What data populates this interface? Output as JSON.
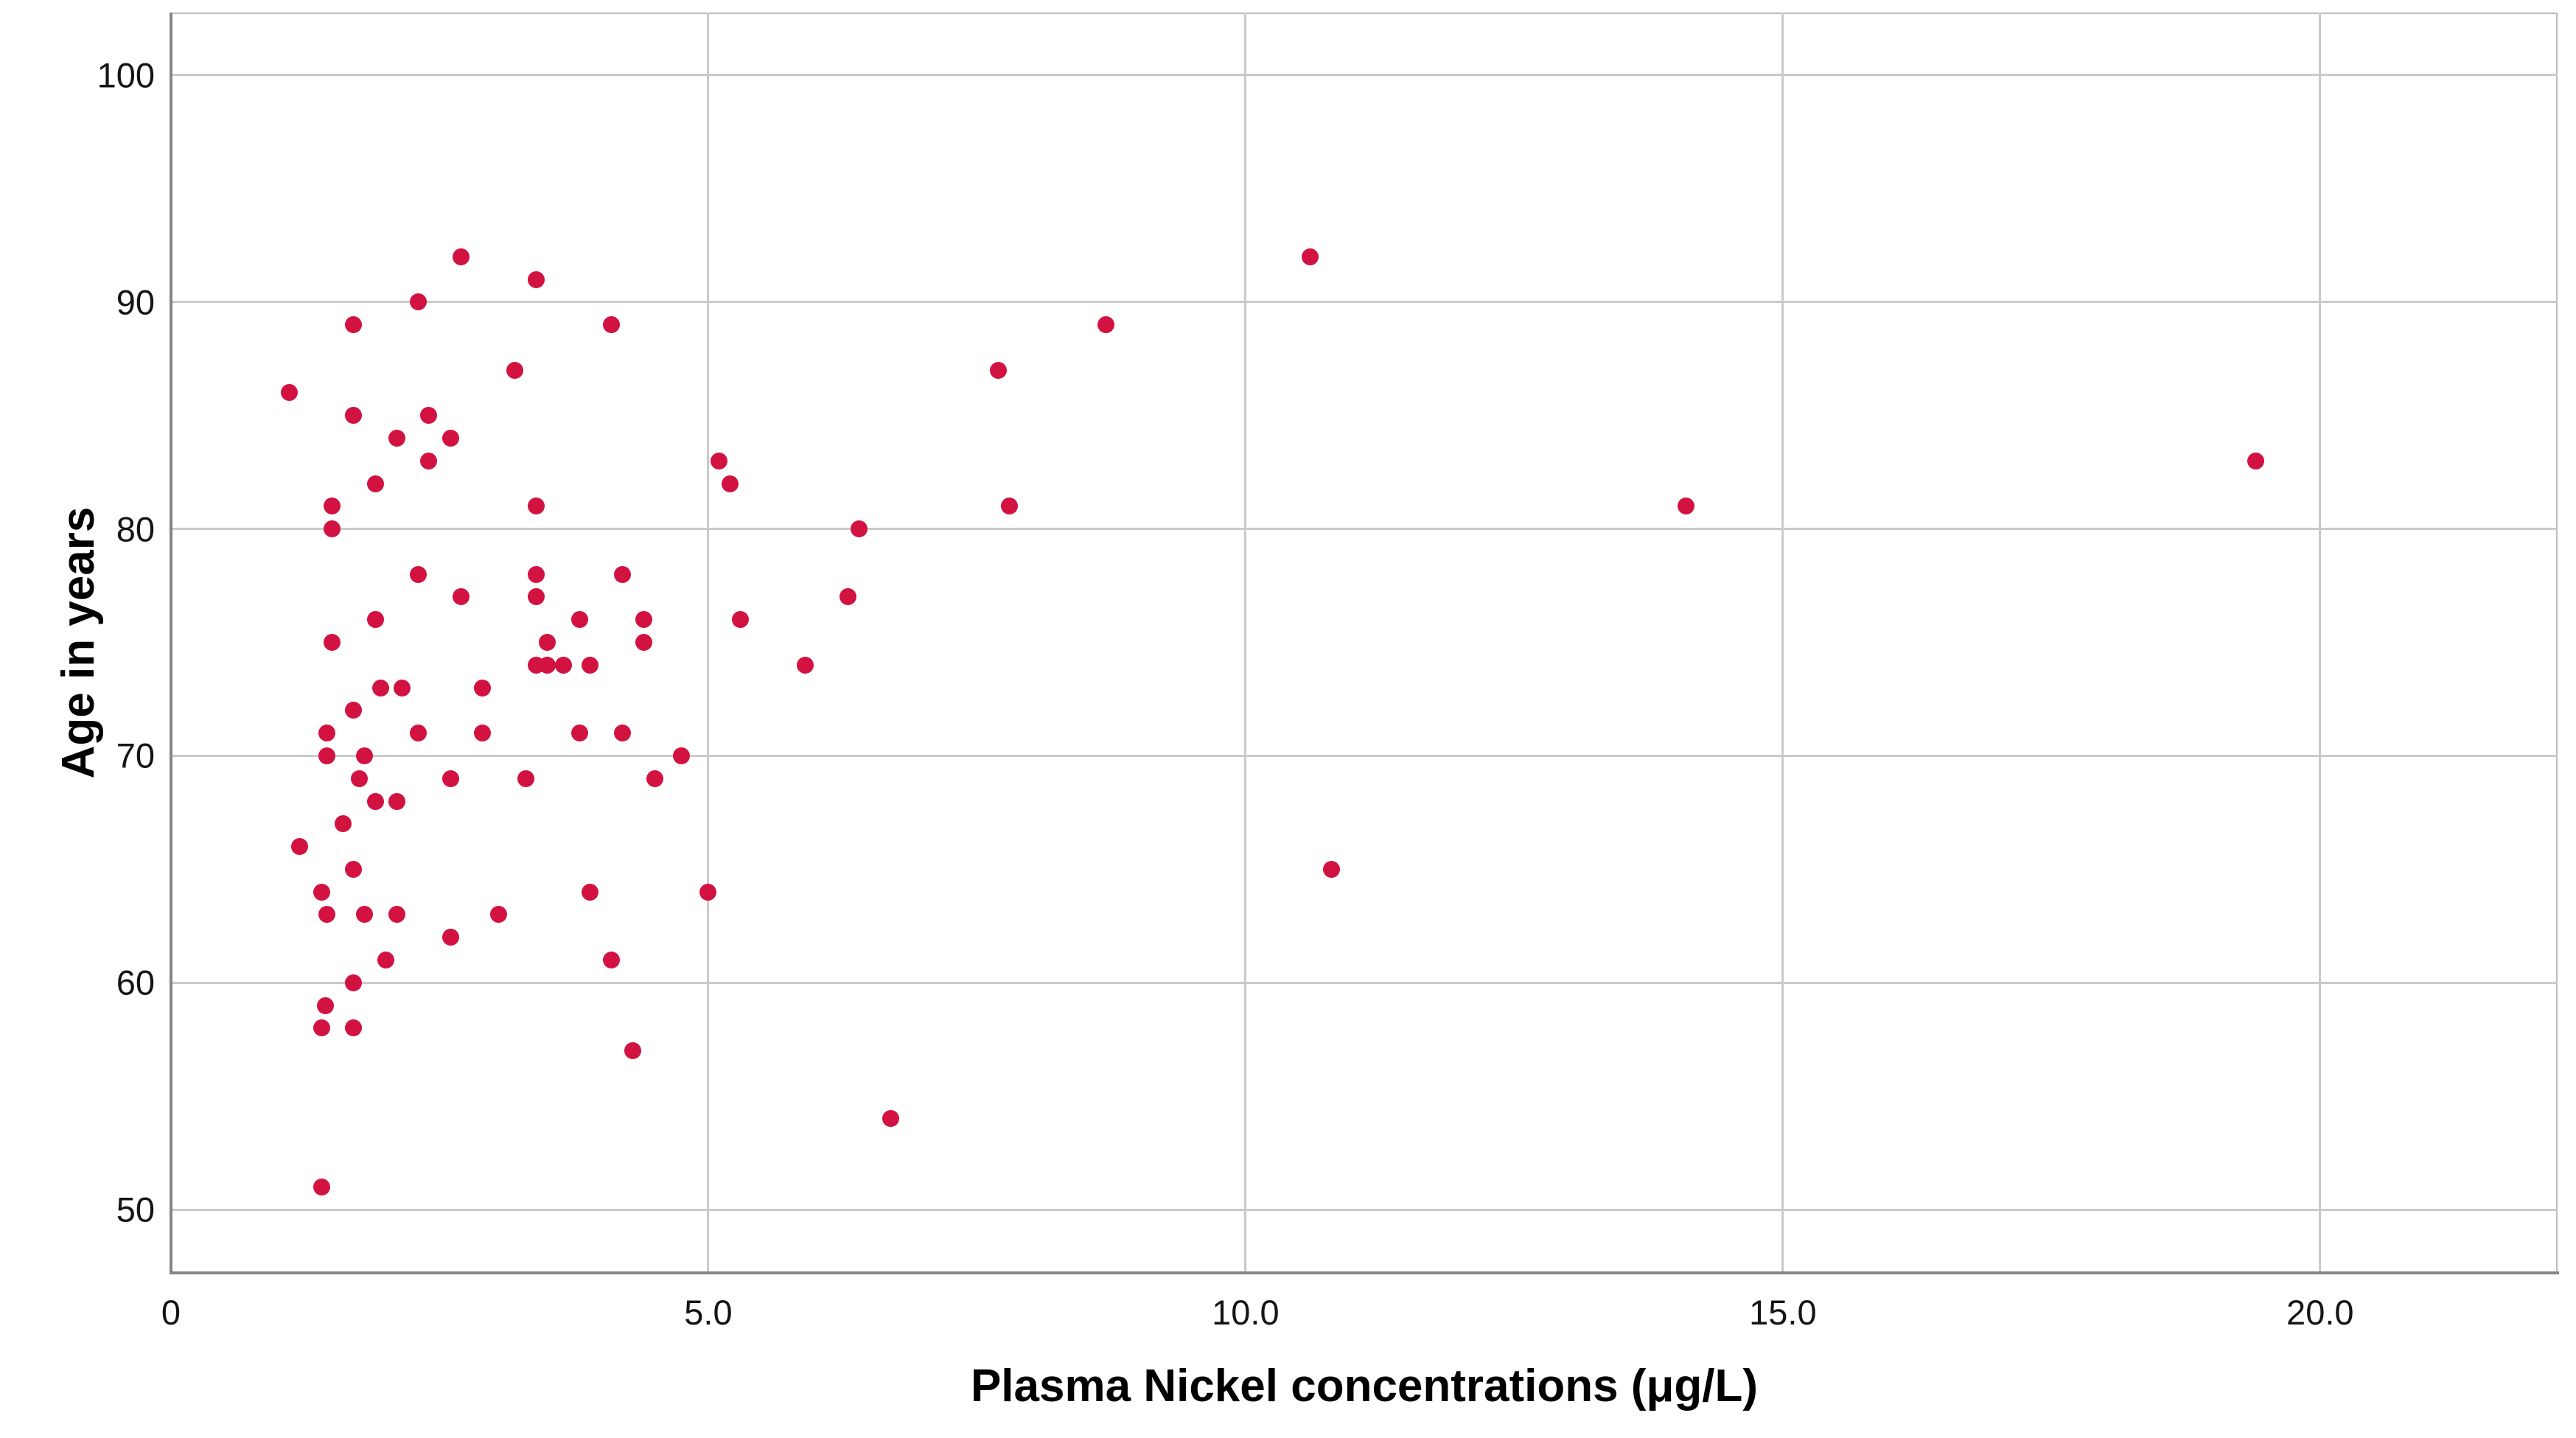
{
  "chart_data": {
    "type": "scatter",
    "title": "",
    "xlabel": "Plasma Nickel concentrations (μg/L)",
    "ylabel": "Age in years",
    "xlim": [
      0,
      22.21
    ],
    "ylim": [
      47.21,
      102.76
    ],
    "grid": "on",
    "legend": "none",
    "x_ticks": [
      {
        "value": 0,
        "label": "0"
      },
      {
        "value": 5,
        "label": "5.0"
      },
      {
        "value": 10,
        "label": "10.0"
      },
      {
        "value": 15,
        "label": "15.0"
      },
      {
        "value": 20,
        "label": "20.0"
      }
    ],
    "y_ticks": [
      {
        "value": 50,
        "label": "50"
      },
      {
        "value": 60,
        "label": "60"
      },
      {
        "value": 70,
        "label": "70"
      },
      {
        "value": 80,
        "label": "80"
      },
      {
        "value": 90,
        "label": "90"
      },
      {
        "value": 100,
        "label": "100"
      }
    ],
    "colors": {
      "point": "#d21240",
      "grid": "#cacaca",
      "axis": "#858585",
      "frame": "#bdbdbd",
      "text": "#000000"
    },
    "points": [
      [
        2.7,
        92
      ],
      [
        10.6,
        92
      ],
      [
        3.4,
        91
      ],
      [
        2.3,
        90
      ],
      [
        1.7,
        89
      ],
      [
        4.1,
        89
      ],
      [
        8.7,
        89
      ],
      [
        3.2,
        87
      ],
      [
        7.7,
        87
      ],
      [
        1.1,
        86
      ],
      [
        1.7,
        85
      ],
      [
        2.4,
        85
      ],
      [
        2.1,
        84
      ],
      [
        2.6,
        84
      ],
      [
        2.4,
        83
      ],
      [
        5.1,
        83
      ],
      [
        19.4,
        83
      ],
      [
        1.9,
        82
      ],
      [
        5.2,
        82
      ],
      [
        1.5,
        81
      ],
      [
        3.4,
        81
      ],
      [
        7.8,
        81
      ],
      [
        14.1,
        81
      ],
      [
        1.5,
        80
      ],
      [
        6.4,
        80
      ],
      [
        2.3,
        78
      ],
      [
        3.4,
        78
      ],
      [
        4.2,
        78
      ],
      [
        2.7,
        77
      ],
      [
        3.4,
        77
      ],
      [
        6.3,
        77
      ],
      [
        1.9,
        76
      ],
      [
        3.8,
        76
      ],
      [
        4.4,
        76
      ],
      [
        5.3,
        76
      ],
      [
        1.5,
        75
      ],
      [
        3.5,
        75
      ],
      [
        4.4,
        75
      ],
      [
        3.4,
        74
      ],
      [
        3.5,
        74
      ],
      [
        3.65,
        74
      ],
      [
        3.9,
        74
      ],
      [
        5.9,
        74
      ],
      [
        1.95,
        73
      ],
      [
        2.15,
        73
      ],
      [
        2.9,
        73
      ],
      [
        1.7,
        72
      ],
      [
        1.45,
        71
      ],
      [
        2.3,
        71
      ],
      [
        2.9,
        71
      ],
      [
        3.8,
        71
      ],
      [
        4.2,
        71
      ],
      [
        1.45,
        70
      ],
      [
        1.8,
        70
      ],
      [
        4.75,
        70
      ],
      [
        1.75,
        69
      ],
      [
        2.6,
        69
      ],
      [
        3.3,
        69
      ],
      [
        4.5,
        69
      ],
      [
        1.9,
        68
      ],
      [
        2.1,
        68
      ],
      [
        1.6,
        67
      ],
      [
        1.2,
        66
      ],
      [
        1.7,
        65
      ],
      [
        10.8,
        65
      ],
      [
        1.4,
        64
      ],
      [
        3.9,
        64
      ],
      [
        5.0,
        64
      ],
      [
        1.45,
        63
      ],
      [
        1.8,
        63
      ],
      [
        2.1,
        63
      ],
      [
        3.05,
        63
      ],
      [
        2.6,
        62
      ],
      [
        2.0,
        61
      ],
      [
        4.1,
        61
      ],
      [
        1.7,
        60
      ],
      [
        1.44,
        59
      ],
      [
        1.4,
        58
      ],
      [
        1.7,
        58
      ],
      [
        4.3,
        57
      ],
      [
        6.7,
        54
      ],
      [
        1.4,
        51
      ]
    ]
  }
}
